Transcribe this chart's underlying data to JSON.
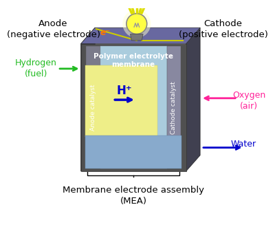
{
  "title": "Membrane electrode assembly\n(MEA)",
  "bg_color": "#ffffff",
  "anode_label": "Anode\n(negative electrode)",
  "cathode_label": "Cathode\n(positive electrode)",
  "hydrogen_label": "Hydrogen\n(fuel)",
  "oxygen_label": "Oxygen\n(air)",
  "water_label": "Water",
  "membrane_label": "Polymer electrolyte\nmembrane",
  "anode_catalyst_label": "Anode catalyst",
  "cathode_catalyst_label": "Cathode catalyst",
  "hplus_label": "H⁺",
  "electron_label": "e⁻",
  "colors": {
    "outer_dark": "#3a3a3a",
    "outer_side": "#454545",
    "top_face": "#6a6a88",
    "inner_gray": "#888898",
    "membrane_blue": "#aacce0",
    "catalyst_gray": "#909090",
    "yellow_region": "#eeee99",
    "water_blue": "#99bbcc",
    "green": "#22bb22",
    "pink": "#ff2299",
    "blue": "#0000cc",
    "orange": "#ff8800",
    "yellow_bulb": "#ffff55",
    "gold": "#ddcc00",
    "black": "#000000",
    "white": "#ffffff"
  }
}
